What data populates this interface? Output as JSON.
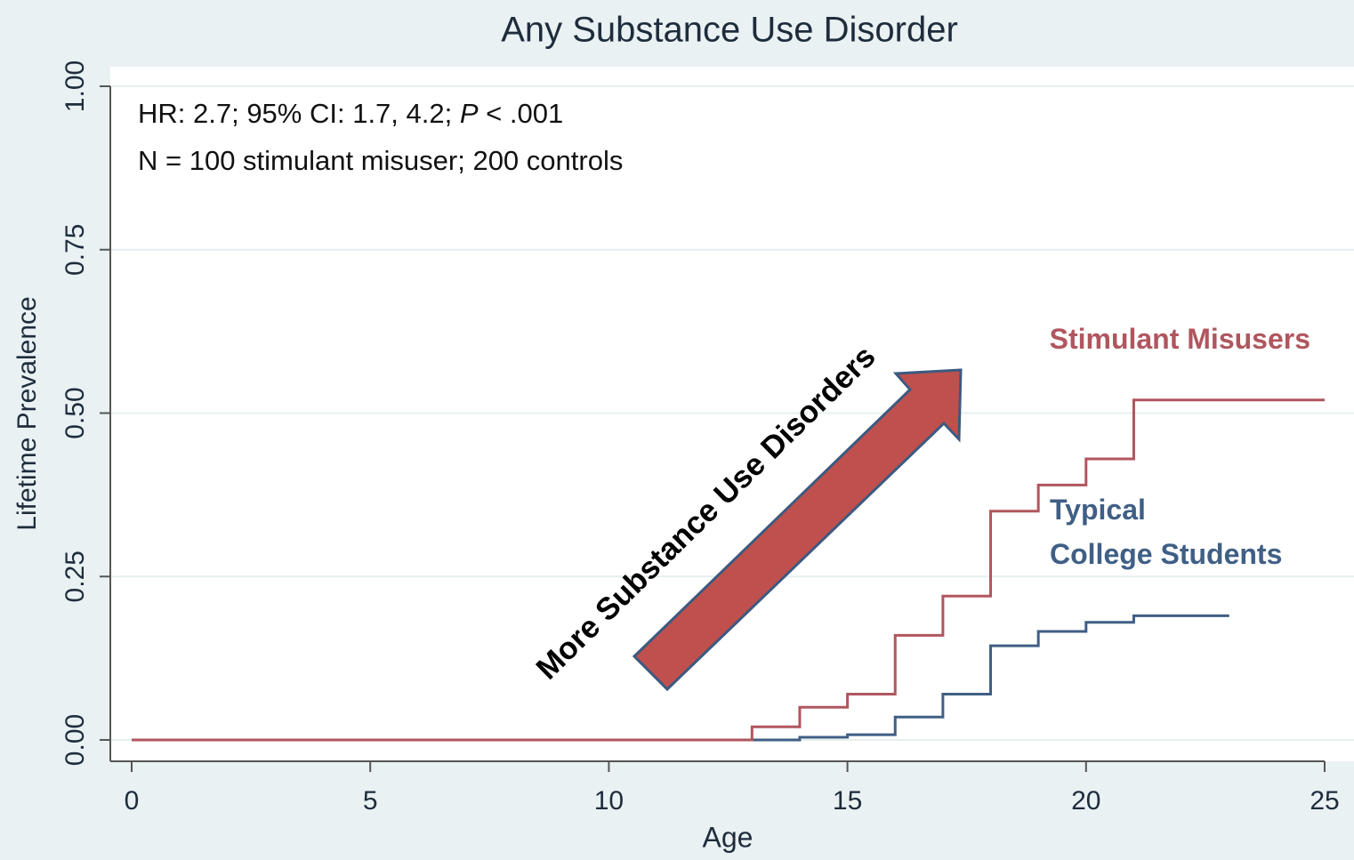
{
  "chart_data": {
    "type": "step",
    "title": "Any Substance Use Disorder",
    "x_label": "Age",
    "y_label": "Lifetime Prevalence",
    "xlim": [
      0,
      25
    ],
    "ylim": [
      0,
      1
    ],
    "xticks": [
      0,
      5,
      10,
      15,
      20,
      25
    ],
    "yticks": [
      {
        "value": 0,
        "label": "0.00"
      },
      {
        "value": 0.25,
        "label": "0.25"
      },
      {
        "value": 0.5,
        "label": "0.50"
      },
      {
        "value": 0.75,
        "label": "0.75"
      },
      {
        "value": 1,
        "label": "1.00"
      }
    ],
    "grid": true,
    "series": [
      {
        "name": "Stimulant Misusers",
        "color": "#b0565e",
        "x": [
          0,
          13,
          14,
          15,
          16,
          17,
          18,
          19,
          20,
          21,
          25
        ],
        "values": [
          0,
          0.02,
          0.05,
          0.07,
          0.16,
          0.22,
          0.35,
          0.39,
          0.43,
          0.52,
          0.52
        ]
      },
      {
        "name": "Typical\nCollege Students",
        "color": "#3f5f85",
        "x": [
          0,
          14,
          15,
          16,
          17,
          18,
          19,
          20,
          21,
          23
        ],
        "values": [
          0,
          0.004,
          0.008,
          0.035,
          0.07,
          0.144,
          0.166,
          0.18,
          0.19,
          0.19
        ]
      }
    ],
    "annotations": {
      "stats_prefix": "HR: 2.7; 95% CI: 1.7, 4.2;",
      "p_symbol": "P",
      "p_value": "< .001",
      "sample": "N = 100 stimulant misuser; 200 controls",
      "arrow_text": "More Substance Use Disorders"
    }
  }
}
